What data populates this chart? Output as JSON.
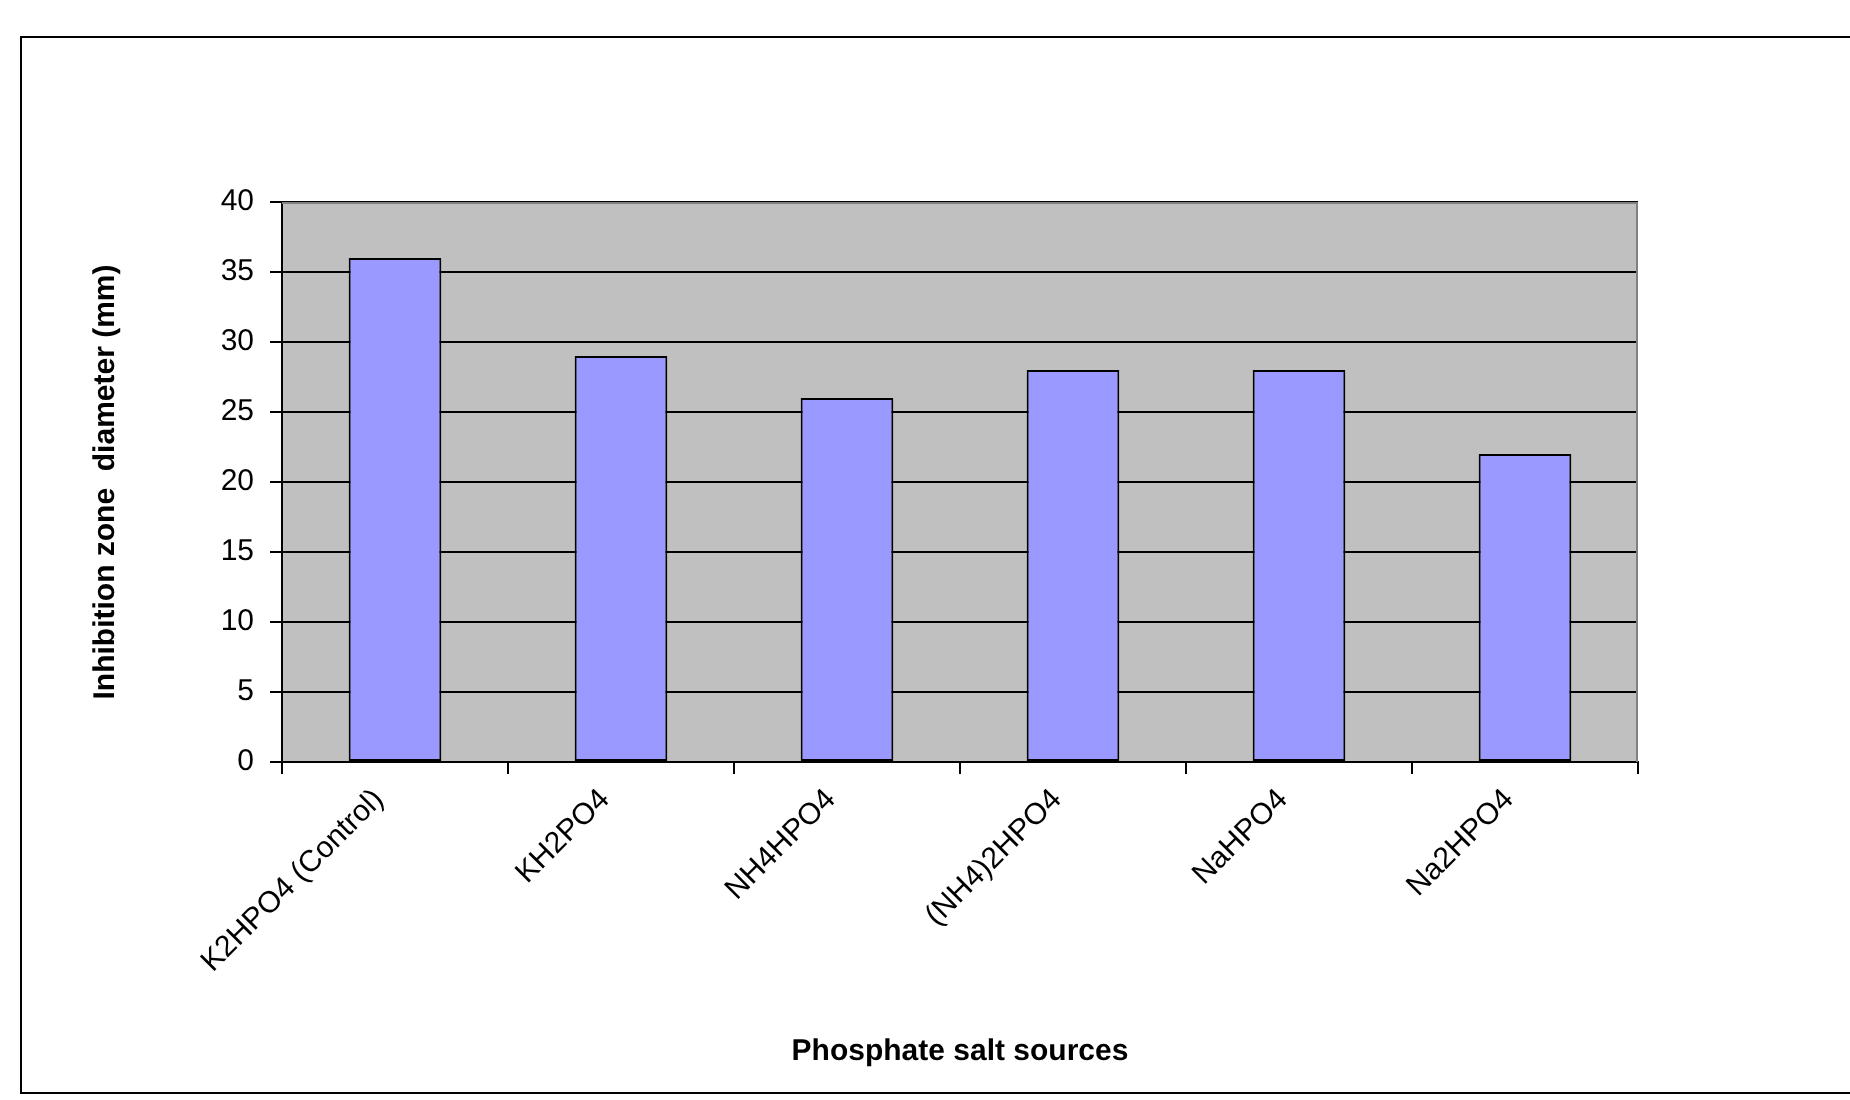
{
  "chart_data": {
    "type": "bar",
    "xlabel": "Phosphate salt sources",
    "ylabel": "Inhibition zone  diameter (mm)",
    "categories": [
      "K2HPO4 (Control)",
      "KH2PO4",
      "NH4HPO4",
      "(NH4)2HPO4",
      "NaHPO4",
      "Na2HPO4"
    ],
    "values": [
      36,
      29,
      26,
      28,
      28,
      22
    ],
    "color": "#9999ff",
    "ylim": [
      0,
      40
    ],
    "yticks": [
      0,
      5,
      10,
      15,
      20,
      25,
      30,
      35,
      40
    ],
    "grid": "y"
  }
}
